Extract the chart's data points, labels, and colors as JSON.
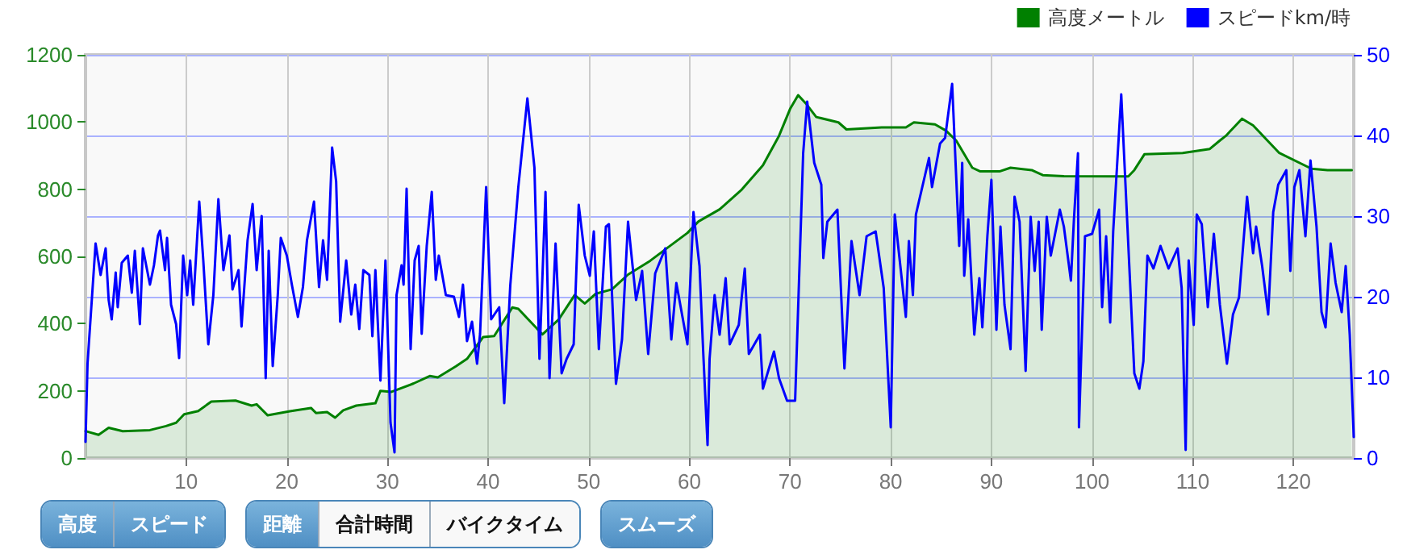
{
  "chart_data": {
    "type": "line",
    "xlim": [
      0,
      126
    ],
    "xticks": [
      10,
      20,
      30,
      40,
      50,
      60,
      70,
      80,
      90,
      100,
      110,
      120
    ],
    "ylim": [
      0,
      1200
    ],
    "yticks": [
      0,
      200,
      400,
      600,
      800,
      1000,
      1200
    ],
    "y2lim": [
      0,
      50
    ],
    "y2ticks": [
      0,
      10,
      20,
      30,
      40,
      50
    ],
    "grid": true,
    "legend": "top right",
    "marker": "none",
    "line_style": "solid",
    "annotations": [
      "高度",
      "スピード",
      "距離",
      "合計時間",
      "バイクタイム",
      "スムーズ"
    ],
    "series": [
      {
        "name": "高度メートル",
        "type": "area",
        "color": "#008000",
        "x": [
          0,
          1.3,
          2.3,
          3.7,
          6.4,
          8.0,
          9.0,
          9.8,
          11.2,
          12.5,
          14.9,
          16.5,
          17.0,
          18.1,
          20.3,
          22.4,
          22.9,
          24.0,
          24.8,
          25.6,
          26.9,
          28.8,
          29.3,
          30.4,
          32.6,
          34.2,
          35.0,
          36.8,
          37.9,
          39.5,
          40.6,
          42.4,
          43.0,
          45.4,
          47.0,
          48.6,
          49.6,
          50.7,
          52.3,
          53.9,
          56.1,
          57.7,
          59.8,
          60.9,
          63.0,
          65.2,
          67.3,
          68.9,
          70.0,
          70.8,
          71.6,
          72.6,
          74.8,
          75.6,
          79.1,
          81.5,
          82.3,
          84.4,
          85.5,
          86.5,
          88.1,
          88.9,
          90.8,
          91.9,
          94.0,
          95.1,
          97.2,
          103.6,
          104.2,
          105.2,
          109.0,
          111.7,
          112.7,
          113.3,
          114.9,
          116.0,
          118.6,
          121.8,
          123.4,
          125.8
        ],
        "values": [
          80,
          69,
          90,
          80,
          83,
          95,
          105,
          130,
          140,
          168,
          171,
          156,
          160,
          127,
          139,
          149,
          134,
          137,
          120,
          142,
          156,
          163,
          200,
          197,
          222,
          244,
          240,
          273,
          295,
          360,
          363,
          448,
          444,
          368,
          412,
          485,
          460,
          489,
          502,
          546,
          587,
          623,
          670,
          704,
          740,
          799,
          871,
          959,
          1039,
          1080,
          1054,
          1015,
          999,
          978,
          984,
          984,
          999,
          993,
          974,
          945,
          864,
          853,
          853,
          864,
          857,
          842,
          839,
          838,
          857,
          904,
          908,
          920,
          945,
          959,
          1010,
          990,
          908,
          861,
          857,
          857
        ]
      },
      {
        "name": "スピードkm/時",
        "axis": "y2",
        "color": "#0000ff",
        "x": [
          0,
          0.2,
          1.0,
          1.5,
          2.0,
          2.3,
          2.6,
          3.0,
          3.2,
          3.6,
          4.2,
          4.6,
          4.9,
          5.4,
          5.7,
          6.4,
          6.8,
          7.2,
          7.4,
          7.9,
          8.1,
          8.5,
          9.0,
          9.3,
          9.7,
          10.1,
          10.4,
          10.7,
          11.3,
          11.7,
          12.2,
          12.7,
          13.2,
          13.7,
          14.3,
          14.6,
          15.2,
          15.5,
          16.1,
          16.6,
          17.0,
          17.5,
          17.9,
          18.2,
          18.6,
          19.1,
          19.4,
          20.0,
          20.5,
          21.1,
          21.6,
          22.0,
          22.7,
          23.2,
          23.6,
          24.0,
          24.5,
          24.9,
          25.3,
          25.9,
          26.4,
          26.8,
          27.2,
          27.6,
          28.2,
          28.5,
          28.8,
          29.3,
          29.8,
          30.3,
          30.7,
          30.9,
          31.4,
          31.6,
          31.9,
          32.3,
          32.7,
          33.1,
          33.4,
          33.9,
          34.4,
          34.8,
          35.1,
          35.8,
          36.6,
          37.1,
          37.5,
          37.9,
          38.4,
          38.9,
          39.2,
          39.8,
          40.3,
          41.1,
          41.6,
          42.2,
          43.0,
          43.9,
          44.6,
          45.1,
          45.7,
          46.1,
          46.7,
          47.3,
          47.8,
          48.5,
          49.0,
          49.6,
          50.1,
          50.5,
          51.0,
          51.7,
          52.0,
          52.7,
          53.3,
          53.9,
          54.7,
          55.3,
          55.9,
          56.6,
          57.6,
          58.2,
          58.7,
          59.8,
          60.4,
          61.0,
          61.4,
          61.8,
          62.0,
          62.5,
          63.0,
          63.6,
          64.0,
          64.9,
          65.5,
          65.9,
          67.0,
          67.3,
          68.4,
          68.9,
          69.7,
          70.5,
          71.3,
          71.7,
          72.4,
          73.1,
          73.3,
          73.7,
          74.7,
          75.4,
          76.1,
          76.9,
          77.6,
          78.5,
          79.3,
          80.0,
          80.4,
          81.5,
          81.8,
          82.2,
          82.5,
          83.8,
          84.1,
          84.9,
          85.4,
          86.1,
          86.8,
          87.1,
          87.3,
          87.7,
          88.3,
          88.8,
          89.1,
          89.6,
          90.0,
          90.5,
          90.9,
          91.3,
          91.9,
          92.3,
          92.8,
          93.4,
          93.9,
          94.3,
          94.7,
          95.0,
          95.5,
          95.9,
          96.8,
          97.2,
          97.9,
          98.2,
          98.6,
          98.7,
          99.3,
          100.0,
          100.7,
          101.0,
          101.4,
          101.8,
          102.1,
          102.9,
          103.4,
          104.2,
          104.7,
          105.1,
          105.5,
          106.1,
          106.8,
          107.6,
          108.5,
          108.9,
          109.3,
          109.6,
          110.1,
          110.4,
          110.9,
          111.5,
          112.1,
          112.7,
          113.4,
          114.0,
          114.6,
          115.4,
          116.0,
          116.3,
          116.9,
          117.5,
          118.0,
          118.5,
          119.3,
          119.7,
          120.1,
          120.6,
          121.2,
          121.7,
          122.3,
          122.8,
          123.2,
          123.7,
          124.2,
          124.8,
          125.2,
          125.6,
          126.0
        ],
        "values": [
          2,
          11.7,
          26.6,
          22.7,
          26,
          19.6,
          17.2,
          23,
          18.7,
          24.2,
          25.1,
          20.5,
          25.7,
          16.6,
          26,
          21.5,
          23.9,
          27.6,
          28.2,
          23.3,
          27.3,
          19,
          16.6,
          12.4,
          25.1,
          20.2,
          24.5,
          19,
          31.8,
          24.5,
          14.1,
          20.2,
          32.1,
          23.3,
          27.6,
          20.9,
          23.3,
          16.3,
          27,
          31.5,
          23.3,
          30,
          9.9,
          25.7,
          11.4,
          20.2,
          27.3,
          25.1,
          21.5,
          17.5,
          21.2,
          27,
          31.8,
          21.2,
          27,
          22.1,
          38.5,
          34.3,
          16.9,
          24.5,
          17.8,
          21.5,
          16,
          23.3,
          22.7,
          15.1,
          23.3,
          9.6,
          24.5,
          4.4,
          0.7,
          20.2,
          23.9,
          21.5,
          33.4,
          13.5,
          24.5,
          26.3,
          15.4,
          26.3,
          33,
          22.1,
          25.1,
          20.2,
          20,
          17.5,
          21.5,
          14.5,
          16.9,
          11.7,
          15.4,
          33.6,
          17.2,
          18.7,
          6.8,
          21.4,
          33.6,
          44.6,
          36,
          12.3,
          33,
          9.9,
          26.6,
          10.5,
          12.3,
          14.1,
          31.4,
          25.1,
          22.6,
          28.1,
          13.5,
          28.7,
          29,
          9.2,
          14.7,
          29.3,
          19.6,
          23.2,
          12.9,
          22.9,
          26,
          14.7,
          21.7,
          14.1,
          30.5,
          23.8,
          12.3,
          1.6,
          12.3,
          20.2,
          15.3,
          22.3,
          14.1,
          16.5,
          23.5,
          12.9,
          15.3,
          8.6,
          13.2,
          9.9,
          7.1,
          7.1,
          37.8,
          44.2,
          36.6,
          33.9,
          24.8,
          29.3,
          30.8,
          11.1,
          26.9,
          20.2,
          27.5,
          28.1,
          21.1,
          3.8,
          30.2,
          17.5,
          26.9,
          20.2,
          30.2,
          37.2,
          33.6,
          39,
          39.7,
          46.4,
          26.3,
          36.6,
          22.6,
          29.6,
          15.3,
          22.3,
          16.2,
          27.5,
          34.5,
          15.9,
          28.7,
          19,
          13.5,
          32.4,
          29.3,
          10.8,
          29.9,
          23.2,
          29.3,
          15.9,
          29.9,
          25.1,
          30.8,
          28.7,
          22,
          29.6,
          37.8,
          3.8,
          27.5,
          27.8,
          30.8,
          18.7,
          27.5,
          16.8,
          28.1,
          45.1,
          31.8,
          10.5,
          8.6,
          12,
          25.1,
          23.5,
          26.3,
          23.5,
          26,
          21.1,
          1,
          24.5,
          16.5,
          30.2,
          29,
          18.7,
          27.8,
          19,
          11.7,
          17.8,
          19.9,
          32.4,
          25.4,
          28.7,
          23.8,
          17.8,
          30.5,
          33.9,
          35.7,
          23.2,
          33.6,
          35.7,
          27.5,
          36.9,
          28.7,
          18.1,
          16.2,
          26.6,
          21.7,
          18.1,
          23.8,
          15.3,
          2.6
        ]
      }
    ]
  }
}
